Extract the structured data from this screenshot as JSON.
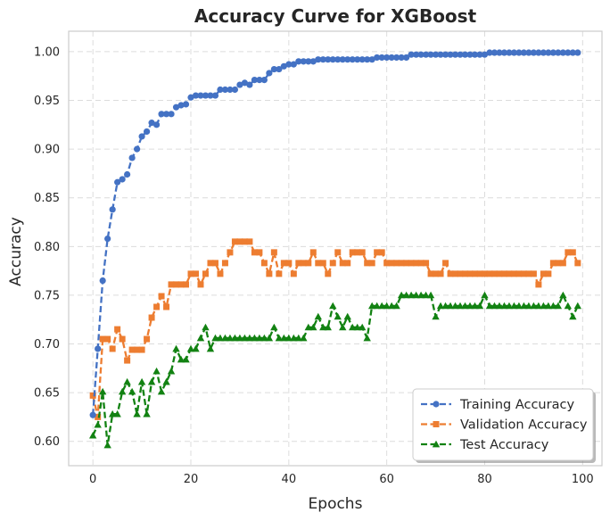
{
  "chart_data": {
    "type": "line",
    "title": "Accuracy Curve for XGBoost",
    "xlabel": "Epochs",
    "ylabel": "Accuracy",
    "xlim": [
      -4.95,
      103.95
    ],
    "ylim": [
      0.575,
      1.021
    ],
    "xticks": [
      0,
      20,
      40,
      60,
      80,
      100
    ],
    "yticks": [
      0.6,
      0.65,
      0.7,
      0.75,
      0.8,
      0.85,
      0.9,
      0.95,
      1.0
    ],
    "grid": true,
    "legend_position": "lower-right",
    "x": [
      0,
      1,
      2,
      3,
      4,
      5,
      6,
      7,
      8,
      9,
      10,
      11,
      12,
      13,
      14,
      15,
      16,
      17,
      18,
      19,
      20,
      21,
      22,
      23,
      24,
      25,
      26,
      27,
      28,
      29,
      30,
      31,
      32,
      33,
      34,
      35,
      36,
      37,
      38,
      39,
      40,
      41,
      42,
      43,
      44,
      45,
      46,
      47,
      48,
      49,
      50,
      51,
      52,
      53,
      54,
      55,
      56,
      57,
      58,
      59,
      60,
      61,
      62,
      63,
      64,
      65,
      66,
      67,
      68,
      69,
      70,
      71,
      72,
      73,
      74,
      75,
      76,
      77,
      78,
      79,
      80,
      81,
      82,
      83,
      84,
      85,
      86,
      87,
      88,
      89,
      90,
      91,
      92,
      93,
      94,
      95,
      96,
      97,
      98,
      99
    ],
    "series": [
      {
        "name": "Training Accuracy",
        "color": "#4472c4",
        "marker": "circle",
        "values": [
          0.627,
          0.695,
          0.765,
          0.808,
          0.838,
          0.866,
          0.869,
          0.874,
          0.891,
          0.9,
          0.913,
          0.918,
          0.927,
          0.925,
          0.936,
          0.936,
          0.936,
          0.943,
          0.945,
          0.946,
          0.953,
          0.955,
          0.955,
          0.955,
          0.955,
          0.955,
          0.961,
          0.961,
          0.961,
          0.961,
          0.966,
          0.968,
          0.966,
          0.971,
          0.971,
          0.971,
          0.978,
          0.982,
          0.982,
          0.985,
          0.987,
          0.987,
          0.99,
          0.99,
          0.99,
          0.99,
          0.992,
          0.992,
          0.992,
          0.992,
          0.992,
          0.992,
          0.992,
          0.992,
          0.992,
          0.992,
          0.992,
          0.992,
          0.994,
          0.994,
          0.994,
          0.994,
          0.994,
          0.994,
          0.994,
          0.997,
          0.997,
          0.997,
          0.997,
          0.997,
          0.997,
          0.997,
          0.997,
          0.997,
          0.997,
          0.997,
          0.997,
          0.997,
          0.997,
          0.997,
          0.997,
          0.999,
          0.999,
          0.999,
          0.999,
          0.999,
          0.999,
          0.999,
          0.999,
          0.999,
          0.999,
          0.999,
          0.999,
          0.999,
          0.999,
          0.999,
          0.999,
          0.999,
          0.999,
          0.999
        ]
      },
      {
        "name": "Validation Accuracy",
        "color": "#ed7d31",
        "marker": "square",
        "values": [
          0.647,
          0.625,
          0.705,
          0.705,
          0.695,
          0.715,
          0.705,
          0.683,
          0.694,
          0.694,
          0.694,
          0.705,
          0.727,
          0.738,
          0.749,
          0.738,
          0.761,
          0.761,
          0.761,
          0.761,
          0.772,
          0.772,
          0.761,
          0.772,
          0.783,
          0.783,
          0.772,
          0.783,
          0.794,
          0.805,
          0.805,
          0.805,
          0.805,
          0.794,
          0.794,
          0.783,
          0.772,
          0.794,
          0.772,
          0.783,
          0.783,
          0.772,
          0.783,
          0.783,
          0.783,
          0.794,
          0.783,
          0.783,
          0.772,
          0.783,
          0.794,
          0.783,
          0.783,
          0.794,
          0.794,
          0.794,
          0.783,
          0.783,
          0.794,
          0.794,
          0.783,
          0.783,
          0.783,
          0.783,
          0.783,
          0.783,
          0.783,
          0.783,
          0.783,
          0.772,
          0.772,
          0.772,
          0.783,
          0.772,
          0.772,
          0.772,
          0.772,
          0.772,
          0.772,
          0.772,
          0.772,
          0.772,
          0.772,
          0.772,
          0.772,
          0.772,
          0.772,
          0.772,
          0.772,
          0.772,
          0.772,
          0.761,
          0.772,
          0.772,
          0.783,
          0.783,
          0.783,
          0.794,
          0.794,
          0.783
        ]
      },
      {
        "name": "Test Accuracy",
        "color": "#128212",
        "marker": "triangle",
        "values": [
          0.606,
          0.617,
          0.651,
          0.596,
          0.628,
          0.628,
          0.651,
          0.661,
          0.651,
          0.628,
          0.661,
          0.628,
          0.661,
          0.672,
          0.651,
          0.661,
          0.672,
          0.695,
          0.684,
          0.684,
          0.695,
          0.695,
          0.706,
          0.717,
          0.695,
          0.706,
          0.706,
          0.706,
          0.706,
          0.706,
          0.706,
          0.706,
          0.706,
          0.706,
          0.706,
          0.706,
          0.706,
          0.717,
          0.706,
          0.706,
          0.706,
          0.706,
          0.706,
          0.706,
          0.717,
          0.717,
          0.728,
          0.717,
          0.717,
          0.739,
          0.728,
          0.717,
          0.728,
          0.717,
          0.717,
          0.717,
          0.706,
          0.739,
          0.739,
          0.739,
          0.739,
          0.739,
          0.739,
          0.75,
          0.75,
          0.75,
          0.75,
          0.75,
          0.75,
          0.75,
          0.728,
          0.739,
          0.739,
          0.739,
          0.739,
          0.739,
          0.739,
          0.739,
          0.739,
          0.739,
          0.75,
          0.739,
          0.739,
          0.739,
          0.739,
          0.739,
          0.739,
          0.739,
          0.739,
          0.739,
          0.739,
          0.739,
          0.739,
          0.739,
          0.739,
          0.739,
          0.75,
          0.739,
          0.728,
          0.739
        ]
      }
    ]
  }
}
